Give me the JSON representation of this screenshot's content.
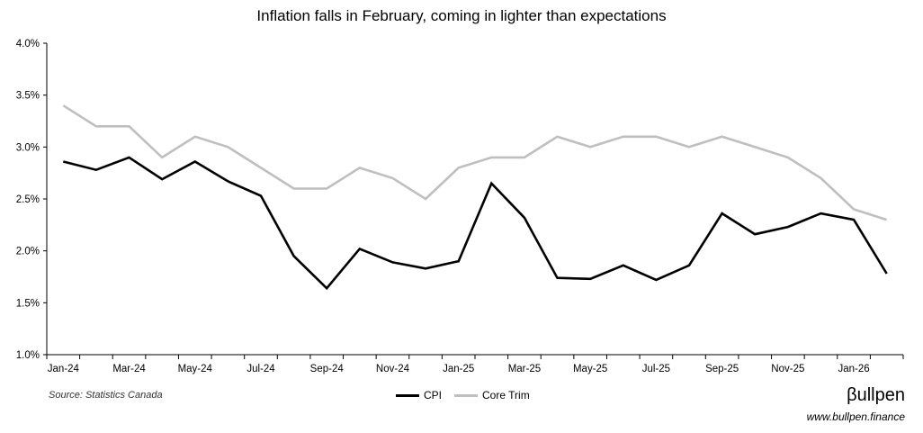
{
  "chart_data": {
    "type": "line",
    "title": "Inflation falls in February, coming in lighter than expectations",
    "x": [
      "Jan-24",
      "Feb-24",
      "Mar-24",
      "Apr-24",
      "May-24",
      "Jun-24",
      "Jul-24",
      "Aug-24",
      "Sep-24",
      "Oct-24",
      "Nov-24",
      "Dec-24",
      "Jan-25",
      "Feb-25",
      "Mar-25",
      "Apr-25",
      "May-25",
      "Jun-25",
      "Jul-25",
      "Aug-25",
      "Sep-25",
      "Oct-25",
      "Nov-25",
      "Dec-25",
      "Jan-26",
      "Feb-26"
    ],
    "tick_labels": [
      "Jan-24",
      "Mar-24",
      "May-24",
      "Jul-24",
      "Sep-24",
      "Nov-24",
      "Jan-25",
      "Mar-25",
      "May-25",
      "Jul-25",
      "Sep-25",
      "Nov-25",
      "Jan-26"
    ],
    "series": [
      {
        "name": "CPI",
        "color": "#000000",
        "values": [
          2.86,
          2.78,
          2.9,
          2.69,
          2.86,
          2.67,
          2.53,
          1.95,
          1.64,
          2.02,
          1.89,
          1.83,
          1.9,
          2.65,
          2.32,
          1.74,
          1.73,
          1.86,
          1.72,
          1.86,
          2.36,
          2.16,
          2.23,
          2.36,
          2.3,
          1.78
        ]
      },
      {
        "name": "Core Trim",
        "color": "#bfbfbf",
        "values": [
          3.4,
          3.2,
          3.2,
          2.9,
          3.1,
          3.0,
          2.8,
          2.6,
          2.6,
          2.8,
          2.7,
          2.5,
          2.8,
          2.9,
          2.9,
          3.1,
          3.0,
          3.1,
          3.1,
          3.0,
          3.1,
          3.0,
          2.9,
          2.7,
          2.4,
          2.3
        ]
      }
    ],
    "ylim": [
      1.0,
      4.0
    ],
    "yticks": [
      1.0,
      1.5,
      2.0,
      2.5,
      3.0,
      3.5,
      4.0
    ],
    "ytick_labels": [
      "1.0%",
      "1.5%",
      "2.0%",
      "2.5%",
      "3.0%",
      "3.5%",
      "4.0%"
    ],
    "legend_position": "bottom-center",
    "xlabel": "",
    "ylabel": ""
  },
  "footer": {
    "source": "Source: Statistics Canada",
    "brand": "βullpen",
    "url": "www.bullpen.finance"
  }
}
